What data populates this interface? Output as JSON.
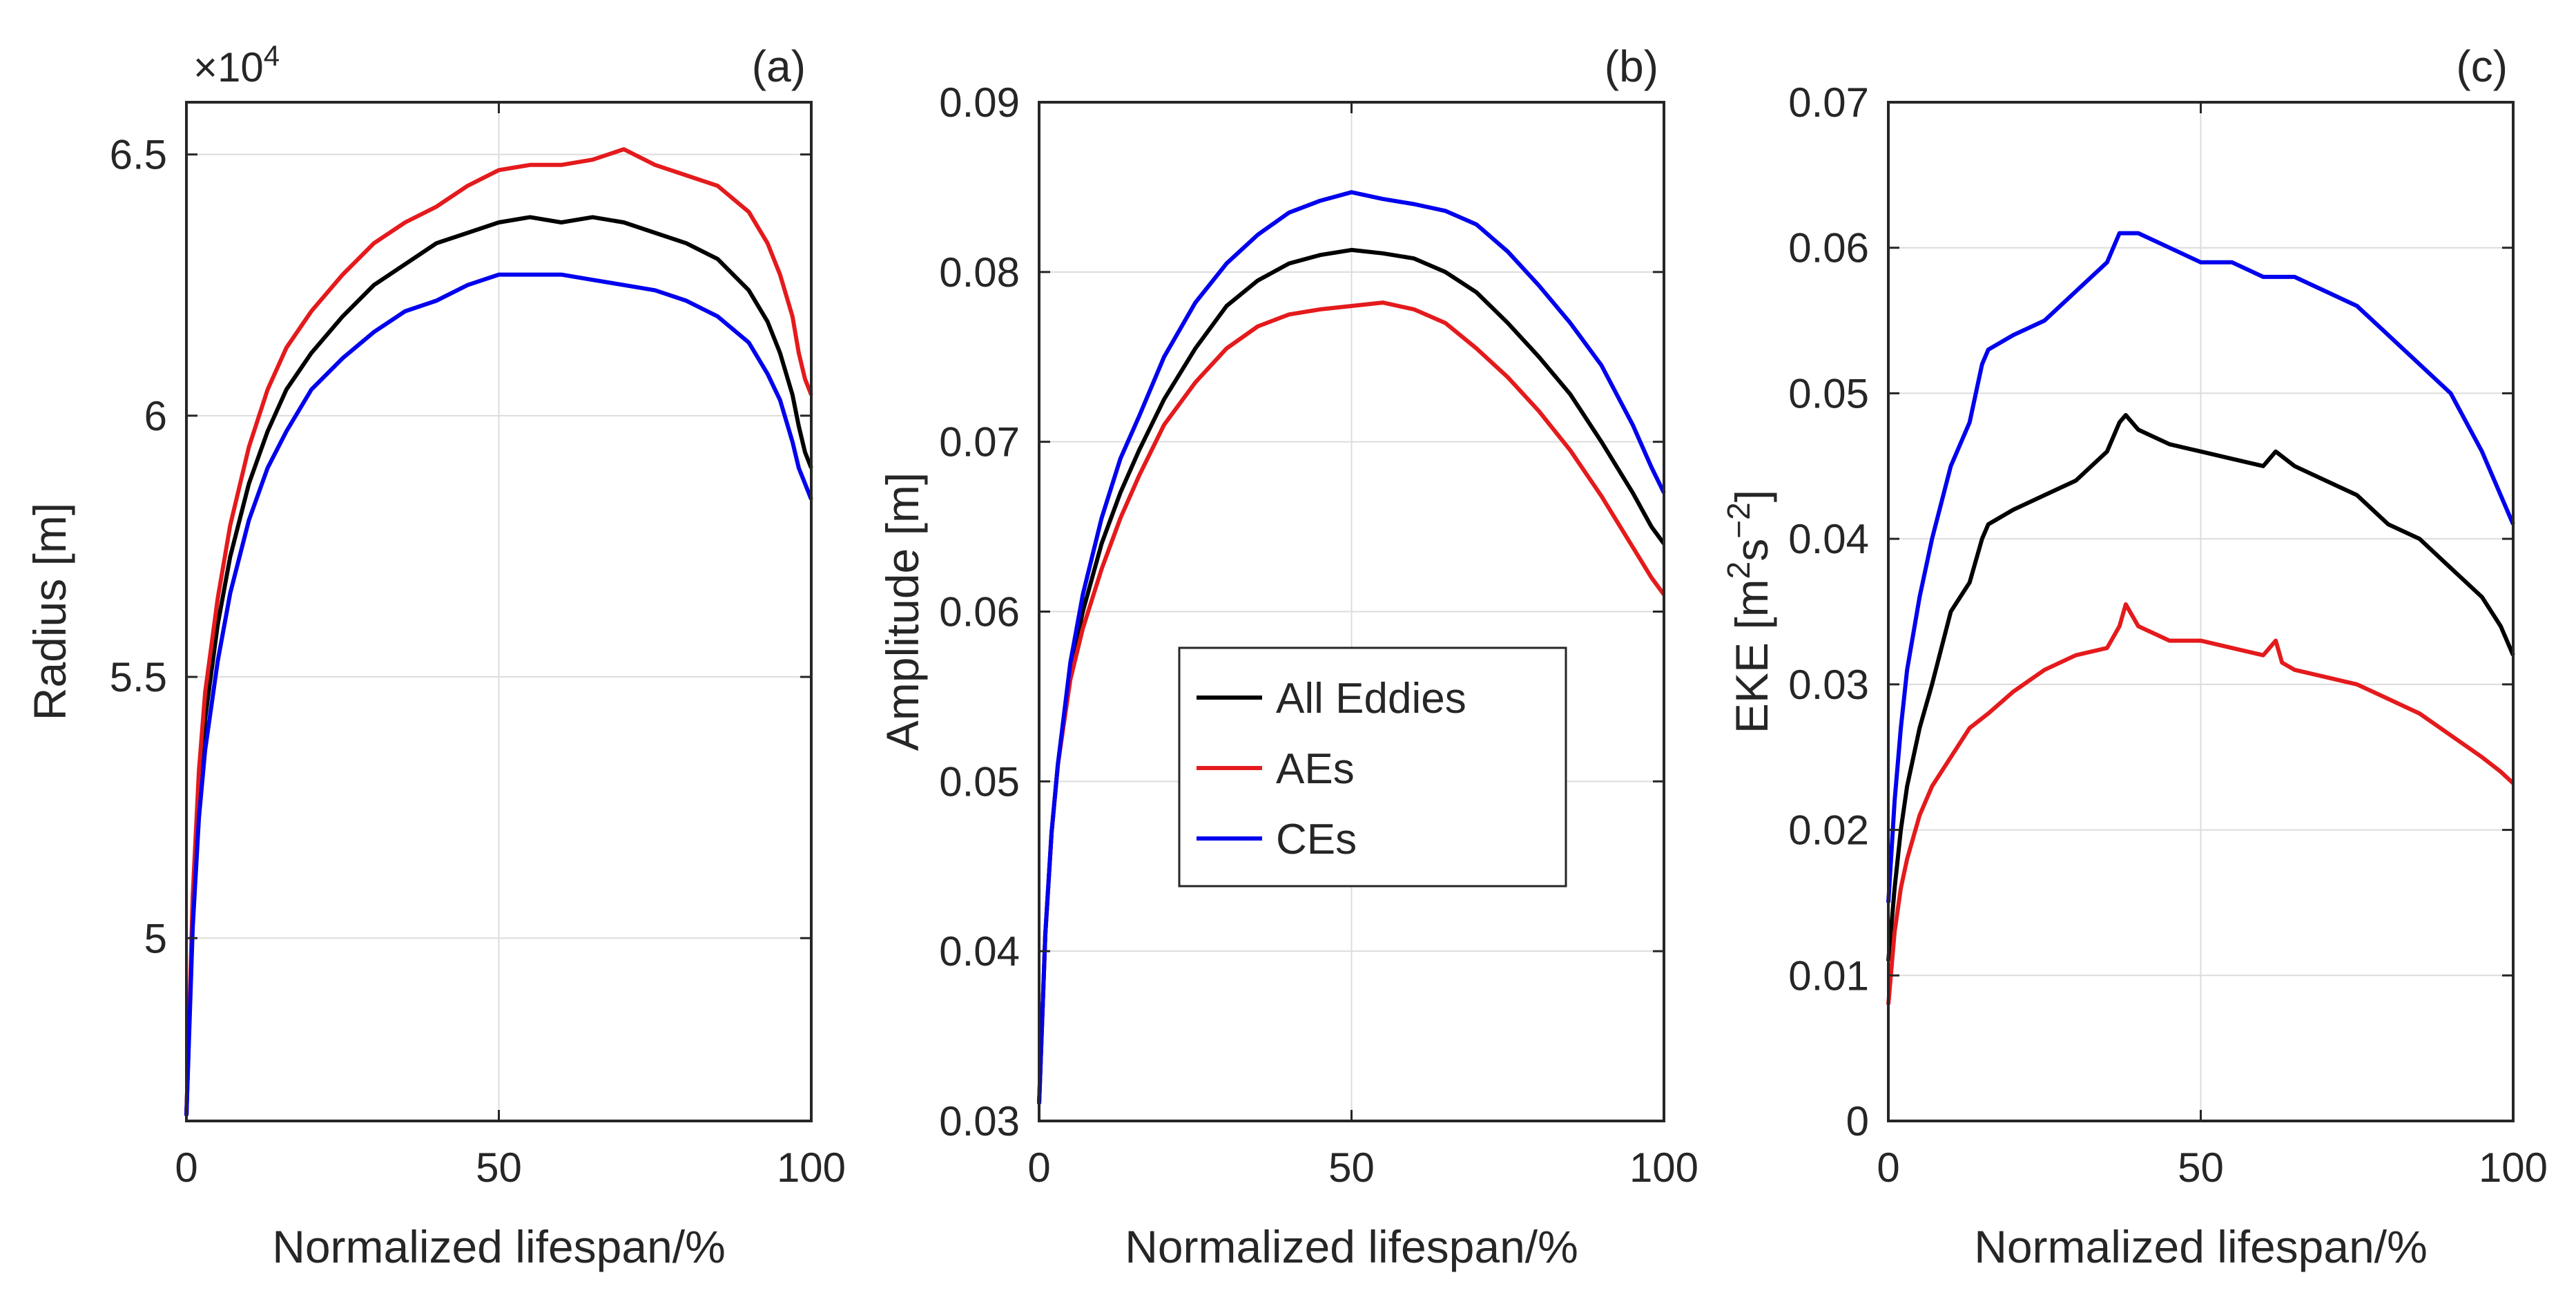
{
  "chart_data": [
    {
      "type": "line",
      "panel_label": "(a)",
      "exponent_label": "×10",
      "exponent_power": "4",
      "xlabel": "Normalized lifespan/%",
      "ylabel": "Radius [m]",
      "xlim": [
        0,
        100
      ],
      "ylim": [
        4.65,
        6.6
      ],
      "grid": true,
      "xticks": [
        0,
        50,
        100
      ],
      "xtick_labels": [
        "0",
        "50",
        "100"
      ],
      "yticks": [
        5.0,
        5.5,
        6.0,
        6.5
      ],
      "ytick_labels": [
        "5",
        "5.5",
        "6",
        "6.5"
      ],
      "series": [
        {
          "name": "All Eddies",
          "color": "#000000",
          "x": [
            0,
            1,
            2,
            3,
            5,
            7,
            10,
            13,
            16,
            20,
            25,
            30,
            35,
            40,
            45,
            50,
            55,
            60,
            65,
            70,
            75,
            80,
            85,
            90,
            93,
            95,
            97,
            98,
            99,
            100
          ],
          "y": [
            4.66,
            5.05,
            5.28,
            5.42,
            5.6,
            5.73,
            5.87,
            5.97,
            6.05,
            6.12,
            6.19,
            6.25,
            6.29,
            6.33,
            6.35,
            6.37,
            6.38,
            6.37,
            6.38,
            6.37,
            6.35,
            6.33,
            6.3,
            6.24,
            6.18,
            6.12,
            6.04,
            5.98,
            5.93,
            5.9
          ]
        },
        {
          "name": "AEs",
          "color": "#e41a1c",
          "x": [
            0,
            1,
            2,
            3,
            5,
            7,
            10,
            13,
            16,
            20,
            25,
            30,
            35,
            40,
            45,
            50,
            55,
            60,
            65,
            70,
            75,
            80,
            85,
            90,
            93,
            95,
            97,
            98,
            99,
            100
          ],
          "y": [
            4.66,
            5.08,
            5.32,
            5.47,
            5.65,
            5.79,
            5.94,
            6.05,
            6.13,
            6.2,
            6.27,
            6.33,
            6.37,
            6.4,
            6.44,
            6.47,
            6.48,
            6.48,
            6.49,
            6.51,
            6.48,
            6.46,
            6.44,
            6.39,
            6.33,
            6.27,
            6.19,
            6.12,
            6.07,
            6.04
          ]
        },
        {
          "name": "CEs",
          "color": "#0000ee",
          "x": [
            0,
            1,
            2,
            3,
            5,
            7,
            10,
            13,
            16,
            20,
            25,
            30,
            35,
            40,
            45,
            50,
            55,
            60,
            65,
            70,
            75,
            80,
            85,
            90,
            93,
            95,
            97,
            98,
            99,
            100
          ],
          "y": [
            4.66,
            5.02,
            5.23,
            5.36,
            5.53,
            5.66,
            5.8,
            5.9,
            5.97,
            6.05,
            6.11,
            6.16,
            6.2,
            6.22,
            6.25,
            6.27,
            6.27,
            6.27,
            6.26,
            6.25,
            6.24,
            6.22,
            6.19,
            6.14,
            6.08,
            6.03,
            5.95,
            5.9,
            5.87,
            5.84
          ]
        }
      ]
    },
    {
      "type": "line",
      "panel_label": "(b)",
      "xlabel": "Normalized lifespan/%",
      "ylabel": "Amplitude [m]",
      "xlim": [
        0,
        100
      ],
      "ylim": [
        0.03,
        0.09
      ],
      "grid": true,
      "xticks": [
        0,
        50,
        100
      ],
      "xtick_labels": [
        "0",
        "50",
        "100"
      ],
      "yticks": [
        0.03,
        0.04,
        0.05,
        0.06,
        0.07,
        0.08,
        0.09
      ],
      "ytick_labels": [
        "0.03",
        "0.04",
        "0.05",
        "0.06",
        "0.07",
        "0.08",
        "0.09"
      ],
      "legend": {
        "position": "center-left",
        "entries": [
          "All Eddies",
          "AEs",
          "CEs"
        ]
      },
      "series": [
        {
          "name": "All Eddies",
          "color": "#000000",
          "x": [
            0,
            1,
            2,
            3,
            5,
            7,
            10,
            13,
            16,
            20,
            25,
            30,
            35,
            40,
            45,
            50,
            55,
            60,
            65,
            70,
            75,
            80,
            85,
            90,
            95,
            98,
            100
          ],
          "y": [
            0.031,
            0.041,
            0.047,
            0.051,
            0.0565,
            0.06,
            0.064,
            0.067,
            0.0695,
            0.0725,
            0.0755,
            0.078,
            0.0795,
            0.0805,
            0.081,
            0.0813,
            0.0811,
            0.0808,
            0.08,
            0.0788,
            0.077,
            0.075,
            0.0728,
            0.07,
            0.067,
            0.065,
            0.064
          ]
        },
        {
          "name": "AEs",
          "color": "#e41a1c",
          "x": [
            0,
            1,
            2,
            3,
            5,
            7,
            10,
            13,
            16,
            20,
            25,
            30,
            35,
            40,
            45,
            50,
            55,
            60,
            65,
            70,
            75,
            80,
            85,
            90,
            95,
            98,
            100
          ],
          "y": [
            0.031,
            0.041,
            0.047,
            0.051,
            0.056,
            0.059,
            0.0625,
            0.0655,
            0.068,
            0.071,
            0.0735,
            0.0755,
            0.0768,
            0.0775,
            0.0778,
            0.078,
            0.0782,
            0.0778,
            0.077,
            0.0755,
            0.0738,
            0.0718,
            0.0695,
            0.0668,
            0.0638,
            0.062,
            0.061
          ]
        },
        {
          "name": "CEs",
          "color": "#0000ee",
          "x": [
            0,
            1,
            2,
            3,
            5,
            7,
            10,
            13,
            16,
            20,
            25,
            30,
            35,
            40,
            45,
            50,
            55,
            60,
            65,
            70,
            75,
            80,
            85,
            90,
            95,
            98,
            100
          ],
          "y": [
            0.031,
            0.041,
            0.047,
            0.051,
            0.057,
            0.061,
            0.0655,
            0.069,
            0.0715,
            0.075,
            0.0782,
            0.0805,
            0.0822,
            0.0835,
            0.0842,
            0.0847,
            0.0843,
            0.084,
            0.0836,
            0.0828,
            0.0812,
            0.0792,
            0.077,
            0.0745,
            0.071,
            0.0685,
            0.067
          ]
        }
      ]
    },
    {
      "type": "line",
      "panel_label": "(c)",
      "xlabel": "Normalized lifespan/%",
      "ylabel": "EKE [m²s⁻²]",
      "ylabel_parts": {
        "base": "EKE [m",
        "sup1": "2",
        "mid": "s",
        "sup2": "−2",
        "end": "]"
      },
      "xlim": [
        0,
        100
      ],
      "ylim": [
        0,
        0.07
      ],
      "grid": true,
      "xticks": [
        0,
        50,
        100
      ],
      "xtick_labels": [
        "0",
        "50",
        "100"
      ],
      "yticks": [
        0,
        0.01,
        0.02,
        0.03,
        0.04,
        0.05,
        0.06,
        0.07
      ],
      "ytick_labels": [
        "0",
        "0.01",
        "0.02",
        "0.03",
        "0.04",
        "0.05",
        "0.06",
        "0.07"
      ],
      "series": [
        {
          "name": "All Eddies",
          "color": "#000000",
          "x": [
            0,
            1,
            2,
            3,
            5,
            7,
            10,
            13,
            15,
            16,
            20,
            25,
            30,
            35,
            37,
            38,
            40,
            45,
            50,
            55,
            60,
            62,
            65,
            70,
            75,
            80,
            85,
            90,
            95,
            98,
            100
          ],
          "y": [
            0.011,
            0.016,
            0.02,
            0.023,
            0.027,
            0.03,
            0.035,
            0.037,
            0.04,
            0.041,
            0.042,
            0.043,
            0.044,
            0.046,
            0.048,
            0.0485,
            0.0475,
            0.0465,
            0.046,
            0.0455,
            0.045,
            0.046,
            0.045,
            0.044,
            0.043,
            0.041,
            0.04,
            0.038,
            0.036,
            0.034,
            0.032
          ]
        },
        {
          "name": "AEs",
          "color": "#e41a1c",
          "x": [
            0,
            1,
            2,
            3,
            5,
            7,
            10,
            13,
            16,
            20,
            25,
            30,
            35,
            37,
            38,
            40,
            45,
            50,
            55,
            60,
            62,
            63,
            65,
            70,
            75,
            80,
            85,
            90,
            95,
            98,
            100
          ],
          "y": [
            0.008,
            0.013,
            0.016,
            0.018,
            0.021,
            0.023,
            0.025,
            0.027,
            0.028,
            0.0295,
            0.031,
            0.032,
            0.0325,
            0.034,
            0.0355,
            0.034,
            0.033,
            0.033,
            0.0325,
            0.032,
            0.033,
            0.0315,
            0.031,
            0.0305,
            0.03,
            0.029,
            0.028,
            0.0265,
            0.025,
            0.024,
            0.0232
          ]
        },
        {
          "name": "CEs",
          "color": "#0000ee",
          "x": [
            0,
            1,
            2,
            3,
            5,
            7,
            10,
            13,
            15,
            16,
            20,
            25,
            30,
            35,
            37,
            40,
            45,
            50,
            55,
            60,
            65,
            70,
            75,
            80,
            85,
            90,
            95,
            98,
            100
          ],
          "y": [
            0.015,
            0.022,
            0.027,
            0.031,
            0.036,
            0.04,
            0.045,
            0.048,
            0.052,
            0.053,
            0.054,
            0.055,
            0.057,
            0.059,
            0.061,
            0.061,
            0.06,
            0.059,
            0.059,
            0.058,
            0.058,
            0.057,
            0.056,
            0.054,
            0.052,
            0.05,
            0.046,
            0.043,
            0.041
          ]
        }
      ]
    }
  ]
}
